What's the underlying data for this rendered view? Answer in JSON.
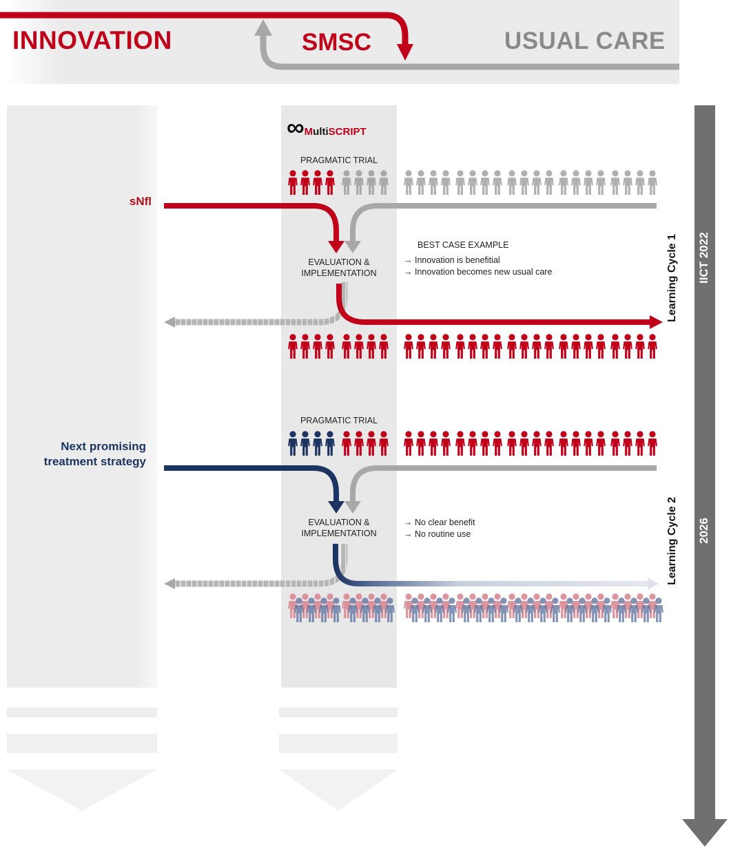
{
  "header": {
    "innovation": "INNOVATION",
    "smsc_s": "S",
    "smsc_rest": "MSC",
    "usual_care": "USUAL CARE"
  },
  "logo": {
    "symbol": "∞",
    "m": "M",
    "ulti": "ulti",
    "script": "SCRIPT"
  },
  "cycle1": {
    "trial_label": "PRAGMATIC TRIAL",
    "innovation_label": "sNfl",
    "eval_line1": "EVALUATION &",
    "eval_line2": "IMPLEMENTATION",
    "result_title": "BEST CASE EXAMPLE",
    "result_line1": "→ Innovation is benefitial",
    "result_line2": "→ Innovation becomes new usual care",
    "cycle_label": "Learning Cycle 1"
  },
  "cycle2": {
    "trial_label": "PRAGMATIC TRIAL",
    "innovation_line1": "Next promising",
    "innovation_line2": "treatment strategy",
    "eval_line1": "EVALUATION &",
    "eval_line2": "IMPLEMENTATION",
    "result_line1": "→ No clear benefit",
    "result_line2": "→ No routine use",
    "cycle_label": "Learning Cycle 2"
  },
  "timeline": {
    "label_top": "IICT 2022",
    "label_bottom": "2026"
  },
  "colors": {
    "innovation_red": "#c00018",
    "usual_gray": "#a8a8a8",
    "navy": "#1c3462",
    "panel_gray": "#ececec",
    "timeline_gray": "#707070"
  }
}
